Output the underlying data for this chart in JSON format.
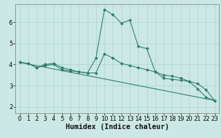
{
  "xlabel": "Humidex (Indice chaleur)",
  "bg_color": "#cce8e4",
  "line_color": "#2d7d6e",
  "grid_color": "#aad4cc",
  "xlim": [
    -0.5,
    23.5
  ],
  "ylim": [
    1.7,
    6.85
  ],
  "xticks": [
    0,
    1,
    2,
    3,
    4,
    5,
    6,
    7,
    8,
    9,
    10,
    11,
    12,
    13,
    14,
    15,
    16,
    17,
    18,
    19,
    20,
    21,
    22,
    23
  ],
  "yticks": [
    2,
    3,
    4,
    5,
    6
  ],
  "series1_x": [
    0,
    1,
    2,
    3,
    4,
    5,
    6,
    7,
    8,
    9,
    10,
    11,
    12,
    13,
    14,
    15,
    16,
    17,
    18,
    19,
    20,
    21,
    22,
    23
  ],
  "series1_y": [
    4.1,
    4.05,
    3.85,
    3.95,
    4.0,
    3.75,
    3.7,
    3.65,
    3.6,
    4.3,
    6.6,
    6.35,
    5.95,
    6.1,
    4.85,
    4.75,
    3.65,
    3.35,
    3.3,
    3.25,
    3.2,
    2.85,
    2.45,
    2.3
  ],
  "series2_x": [
    0,
    1,
    2,
    3,
    4,
    5,
    6,
    7,
    8,
    9,
    10,
    11,
    12,
    13,
    14,
    15,
    16,
    17,
    18,
    19,
    20,
    21,
    22,
    23
  ],
  "series2_y": [
    4.1,
    4.05,
    3.85,
    4.0,
    4.05,
    3.85,
    3.75,
    3.65,
    3.6,
    3.6,
    4.5,
    4.3,
    4.05,
    3.95,
    3.85,
    3.75,
    3.65,
    3.5,
    3.45,
    3.35,
    3.2,
    3.1,
    2.8,
    2.3
  ],
  "series3_x": [
    0,
    23
  ],
  "series3_y": [
    4.1,
    2.3
  ],
  "xlabel_fontsize": 7.5,
  "tick_fontsize": 6
}
